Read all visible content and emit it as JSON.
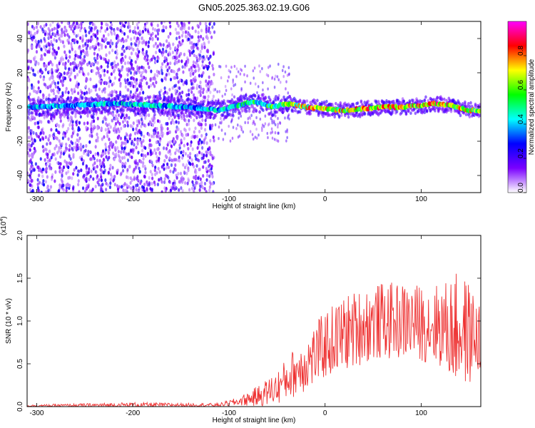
{
  "title": "GN05.2025.363.02.19.G06",
  "chart_data": [
    {
      "type": "heatmap",
      "name": "spectrogram",
      "xlabel": "Height of straight line (km)",
      "ylabel": "Frequency (Hz)",
      "xlim": [
        -310,
        162
      ],
      "ylim": [
        -50,
        50
      ],
      "xticks": [
        -300,
        -200,
        -100,
        0,
        100
      ],
      "yticks": [
        -40,
        -20,
        0,
        20,
        40
      ],
      "colorbar": {
        "label": "Normalized spectral amplitude",
        "range": [
          0.0,
          1.0
        ],
        "ticks": [
          0.0,
          0.2,
          0.4,
          0.6,
          0.8
        ],
        "tick_labels": [
          "0.0",
          "0.2",
          "0.4",
          "0.6",
          "0.8"
        ],
        "colormap": [
          "#ffffff",
          "#7a00ff",
          "#0000ff",
          "#00ffff",
          "#00ff00",
          "#ffff00",
          "#ff0000",
          "#ff00ff"
        ]
      },
      "ridge": {
        "description": "dominant frequency track vs height",
        "x": [
          -300,
          -260,
          -220,
          -180,
          -140,
          -110,
          -90,
          -75,
          -65,
          -55,
          -40,
          -20,
          0,
          20,
          40,
          60,
          80,
          100,
          115,
          130,
          150,
          162
        ],
        "y": [
          0,
          1,
          2,
          1,
          0,
          -2,
          1,
          3,
          2,
          0,
          2,
          0,
          -1,
          -2,
          -1,
          0,
          0,
          1,
          2,
          1,
          -2,
          -2
        ],
        "amplitude": [
          0.45,
          0.5,
          0.5,
          0.5,
          0.45,
          0.5,
          0.55,
          0.6,
          0.55,
          0.65,
          0.7,
          0.85,
          0.9,
          0.85,
          0.85,
          0.9,
          0.9,
          0.9,
          0.9,
          0.85,
          0.8,
          0.8
        ]
      },
      "noise_region_x": [
        -310,
        -115
      ]
    },
    {
      "type": "line",
      "name": "snr",
      "xlabel": "Height of straight line (km)",
      "ylabel": "SNR (10 * v/v)",
      "yscale_label": "(x10",
      "yscale_exp": "4",
      "xlim": [
        -310,
        162
      ],
      "ylim": [
        0.0,
        2.0
      ],
      "xticks": [
        -300,
        -200,
        -100,
        0,
        100
      ],
      "yticks": [
        0.0,
        0.5,
        1.0,
        1.5,
        2.0
      ],
      "ytick_labels": [
        "0.0",
        "0.5",
        "1.0",
        "1.5",
        "2.0"
      ],
      "color": "#ee3333",
      "envelope": {
        "x": [
          -310,
          -200,
          -150,
          -110,
          -90,
          -70,
          -50,
          -40,
          -30,
          -15,
          0,
          20,
          40,
          60,
          80,
          100,
          120,
          130,
          140,
          150,
          162
        ],
        "mean": [
          0.01,
          0.02,
          0.02,
          0.02,
          0.06,
          0.12,
          0.22,
          0.32,
          0.42,
          0.55,
          0.72,
          0.85,
          0.95,
          1.0,
          1.0,
          0.98,
          0.95,
          0.9,
          0.9,
          0.85,
          0.8
        ],
        "amp": [
          0.01,
          0.03,
          0.02,
          0.02,
          0.05,
          0.12,
          0.2,
          0.25,
          0.3,
          0.35,
          0.4,
          0.45,
          0.45,
          0.45,
          0.45,
          0.45,
          0.5,
          0.6,
          0.7,
          0.6,
          0.4
        ]
      }
    }
  ]
}
